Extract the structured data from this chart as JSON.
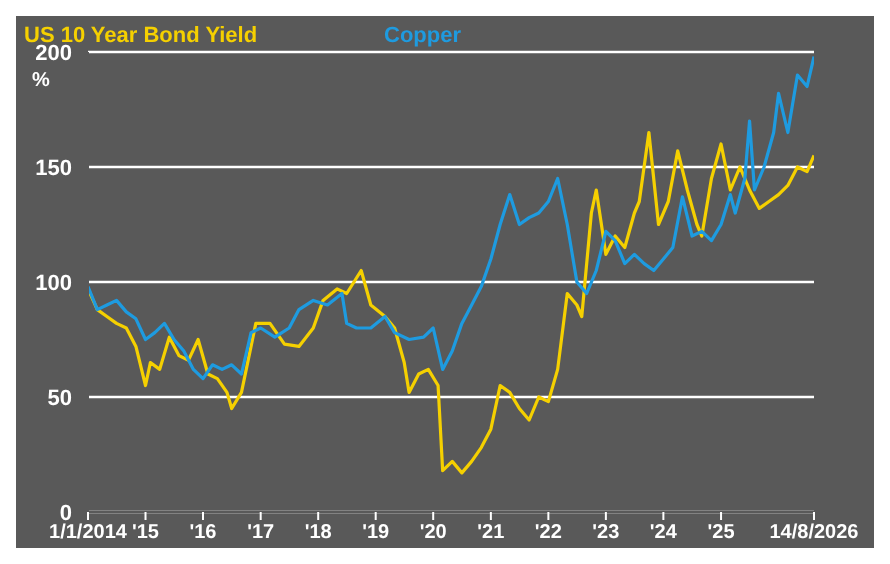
{
  "chart_data": {
    "type": "line",
    "ylabel": "%",
    "legend": "top",
    "grid": "y",
    "marker": "none",
    "line_style": "solid",
    "xlim": [
      "2014-01-01",
      "2026-08-14"
    ],
    "xticks": [
      {
        "value": "2014-01-01",
        "label": "1/1/2014"
      },
      {
        "value": "2015-01-01",
        "label": "'15"
      },
      {
        "value": "2016-01-01",
        "label": "'16"
      },
      {
        "value": "2017-01-01",
        "label": "'17"
      },
      {
        "value": "2018-01-01",
        "label": "'18"
      },
      {
        "value": "2019-01-01",
        "label": "'19"
      },
      {
        "value": "2020-01-01",
        "label": "'20"
      },
      {
        "value": "2021-01-01",
        "label": "'21"
      },
      {
        "value": "2022-01-01",
        "label": "'22"
      },
      {
        "value": "2023-01-01",
        "label": "'23"
      },
      {
        "value": "2024-01-01",
        "label": "'24"
      },
      {
        "value": "2025-01-01",
        "label": "'25"
      },
      {
        "value": "2026-08-14",
        "label": "14/8/2026"
      }
    ],
    "ylim": [
      0,
      200
    ],
    "yticks": [
      0,
      50,
      100,
      150,
      200
    ],
    "series": [
      {
        "name": "US 10 Year Bond Yield",
        "color": "#f5d000",
        "x": [
          "2014-01",
          "2014-03",
          "2014-05",
          "2014-07",
          "2014-09",
          "2014-11",
          "2015-01",
          "2015-02",
          "2015-04",
          "2015-06",
          "2015-08",
          "2015-10",
          "2015-12",
          "2016-02",
          "2016-04",
          "2016-06",
          "2016-07",
          "2016-09",
          "2016-11",
          "2016-12",
          "2017-03",
          "2017-06",
          "2017-09",
          "2017-12",
          "2018-02",
          "2018-05",
          "2018-07",
          "2018-10",
          "2018-12",
          "2019-03",
          "2019-05",
          "2019-07",
          "2019-08",
          "2019-10",
          "2019-12",
          "2020-02",
          "2020-03",
          "2020-05",
          "2020-07",
          "2020-09",
          "2020-11",
          "2021-01",
          "2021-03",
          "2021-05",
          "2021-07",
          "2021-09",
          "2021-11",
          "2022-01",
          "2022-03",
          "2022-05",
          "2022-07",
          "2022-08",
          "2022-10",
          "2022-11",
          "2023-01",
          "2023-03",
          "2023-05",
          "2023-07",
          "2023-08",
          "2023-10",
          "2023-12",
          "2024-02",
          "2024-04",
          "2024-06",
          "2024-08",
          "2024-09",
          "2024-11",
          "2025-01",
          "2025-03",
          "2025-05",
          "2025-07",
          "2025-09",
          "2025-11",
          "2026-01",
          "2026-03",
          "2026-05",
          "2026-07",
          "2026-08-14"
        ],
        "values": [
          97,
          88,
          85,
          82,
          80,
          72,
          55,
          65,
          62,
          76,
          68,
          66,
          75,
          60,
          58,
          52,
          45,
          52,
          72,
          82,
          82,
          73,
          72,
          80,
          92,
          97,
          95,
          105,
          90,
          85,
          80,
          65,
          52,
          60,
          62,
          55,
          18,
          22,
          17,
          22,
          28,
          36,
          55,
          52,
          45,
          40,
          50,
          48,
          62,
          95,
          90,
          85,
          130,
          140,
          112,
          120,
          115,
          130,
          135,
          165,
          125,
          135,
          157,
          140,
          125,
          120,
          145,
          160,
          140,
          150,
          140,
          132,
          135,
          138,
          142,
          150,
          148,
          155
        ]
      },
      {
        "name": "Copper",
        "color": "#1e9be0",
        "x": [
          "2014-01",
          "2014-03",
          "2014-05",
          "2014-07",
          "2014-09",
          "2014-11",
          "2015-01",
          "2015-03",
          "2015-05",
          "2015-07",
          "2015-09",
          "2015-11",
          "2016-01",
          "2016-03",
          "2016-05",
          "2016-07",
          "2016-09",
          "2016-11",
          "2017-01",
          "2017-04",
          "2017-07",
          "2017-09",
          "2017-12",
          "2018-03",
          "2018-06",
          "2018-07",
          "2018-09",
          "2018-12",
          "2019-03",
          "2019-05",
          "2019-08",
          "2019-11",
          "2020-01",
          "2020-03",
          "2020-05",
          "2020-07",
          "2020-09",
          "2020-11",
          "2021-01",
          "2021-03",
          "2021-05",
          "2021-07",
          "2021-09",
          "2021-11",
          "2022-01",
          "2022-03",
          "2022-05",
          "2022-07",
          "2022-09",
          "2022-11",
          "2023-01",
          "2023-03",
          "2023-05",
          "2023-07",
          "2023-09",
          "2023-11",
          "2024-01",
          "2024-03",
          "2024-05",
          "2024-07",
          "2024-09",
          "2024-11",
          "2025-01",
          "2025-03",
          "2025-04",
          "2025-06",
          "2025-07",
          "2025-08",
          "2025-10",
          "2025-12",
          "2026-01",
          "2026-03",
          "2026-05",
          "2026-07",
          "2026-08-14"
        ],
        "values": [
          98,
          88,
          90,
          92,
          87,
          84,
          75,
          78,
          82,
          75,
          70,
          62,
          58,
          64,
          62,
          64,
          60,
          78,
          80,
          76,
          80,
          88,
          92,
          90,
          95,
          82,
          80,
          80,
          85,
          78,
          75,
          76,
          80,
          62,
          70,
          82,
          90,
          98,
          110,
          125,
          138,
          125,
          128,
          130,
          135,
          145,
          125,
          100,
          95,
          105,
          122,
          118,
          108,
          112,
          108,
          105,
          110,
          115,
          137,
          120,
          122,
          118,
          125,
          138,
          130,
          145,
          170,
          140,
          150,
          165,
          182,
          165,
          190,
          185,
          198
        ]
      }
    ]
  }
}
